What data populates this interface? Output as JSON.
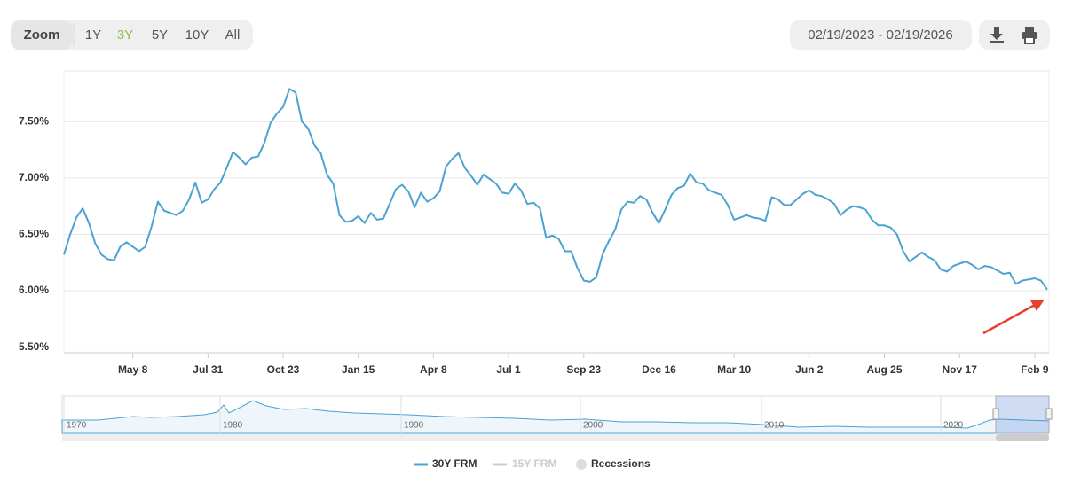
{
  "toolbar": {
    "zoom_label": "Zoom",
    "zoom_buttons": [
      "1Y",
      "3Y",
      "5Y",
      "10Y",
      "All"
    ],
    "active_zoom": 1,
    "date_range": "02/19/2023 - 02/19/2026"
  },
  "chart_data": {
    "type": "line",
    "categories": [
      null,
      null,
      null,
      null,
      null,
      null,
      null,
      null,
      null,
      null,
      null,
      "May 8",
      null,
      null,
      null,
      null,
      null,
      null,
      null,
      null,
      null,
      null,
      null,
      "Jul 31",
      null,
      null,
      null,
      null,
      null,
      null,
      null,
      null,
      null,
      null,
      null,
      "Oct 23",
      null,
      null,
      null,
      null,
      null,
      null,
      null,
      null,
      null,
      null,
      null,
      "Jan 15",
      null,
      null,
      null,
      null,
      null,
      null,
      null,
      null,
      null,
      null,
      null,
      "Apr 8",
      null,
      null,
      null,
      null,
      null,
      null,
      null,
      null,
      null,
      null,
      null,
      "Jul 1",
      null,
      null,
      null,
      null,
      null,
      null,
      null,
      null,
      null,
      null,
      null,
      "Sep 23",
      null,
      null,
      null,
      null,
      null,
      null,
      null,
      null,
      null,
      null,
      null,
      "Dec 16",
      null,
      null,
      null,
      null,
      null,
      null,
      null,
      null,
      null,
      null,
      null,
      "Mar 10",
      null,
      null,
      null,
      null,
      null,
      null,
      null,
      null,
      null,
      null,
      null,
      "Jun 2",
      null,
      null,
      null,
      null,
      null,
      null,
      null,
      null,
      null,
      null,
      null,
      "Aug 25",
      null,
      null,
      null,
      null,
      null,
      null,
      null,
      null,
      null,
      null,
      null,
      "Nov 17",
      null,
      null,
      null,
      null,
      null,
      null,
      null,
      null,
      null,
      null,
      null,
      "Feb 9",
      null,
      null
    ],
    "series": [
      {
        "name": "30Y FRM",
        "color": "#4aa3d0",
        "values": [
          6.32,
          6.5,
          6.65,
          6.73,
          6.6,
          6.42,
          6.32,
          6.28,
          6.27,
          6.39,
          6.43,
          6.39,
          6.35,
          6.39,
          6.57,
          6.79,
          6.71,
          6.69,
          6.67,
          6.71,
          6.81,
          6.96,
          6.78,
          6.81,
          6.9,
          6.96,
          7.09,
          7.23,
          7.18,
          7.12,
          7.18,
          7.19,
          7.31,
          7.49,
          7.57,
          7.63,
          7.79,
          7.76,
          7.5,
          7.44,
          7.29,
          7.22,
          7.03,
          6.95,
          6.67,
          6.61,
          6.62,
          6.66,
          6.6,
          6.69,
          6.63,
          6.64,
          6.77,
          6.9,
          6.94,
          6.88,
          6.74,
          6.87,
          6.79,
          6.82,
          6.88,
          7.1,
          7.17,
          7.22,
          7.09,
          7.02,
          6.94,
          7.03,
          6.99,
          6.95,
          6.87,
          6.86,
          6.95,
          6.89,
          6.77,
          6.78,
          6.73,
          6.47,
          6.49,
          6.46,
          6.35,
          6.35,
          6.2,
          6.09,
          6.08,
          6.12,
          6.32,
          6.44,
          6.54,
          6.72,
          6.79,
          6.78,
          6.84,
          6.81,
          6.69,
          6.6,
          6.72,
          6.85,
          6.91,
          6.93,
          7.04,
          6.96,
          6.95,
          6.89,
          6.87,
          6.85,
          6.76,
          6.63,
          6.65,
          6.67,
          6.65,
          6.64,
          6.62,
          6.83,
          6.81,
          6.76,
          6.76,
          6.81,
          6.86,
          6.89,
          6.85,
          6.84,
          6.81,
          6.77,
          6.67,
          6.72,
          6.75,
          6.74,
          6.72,
          6.63,
          6.58,
          6.58,
          6.56,
          6.5,
          6.35,
          6.26,
          6.3,
          6.34,
          6.3,
          6.27,
          6.19,
          6.17,
          6.22,
          6.24,
          6.26,
          6.23,
          6.19,
          6.22,
          6.21,
          6.18,
          6.15,
          6.16,
          6.06,
          6.09,
          6.1,
          6.11,
          6.09,
          6.01
        ]
      }
    ],
    "ylim": [
      5.45,
      7.95
    ],
    "yticks": [
      {
        "value": 5.5,
        "label": "5.50%"
      },
      {
        "value": 6,
        "label": "6.00%"
      },
      {
        "value": 6.5,
        "label": "6.50%"
      },
      {
        "value": 7,
        "label": "7.00%"
      },
      {
        "value": 7.5,
        "label": "7.50%"
      }
    ],
    "grid": true
  },
  "legend": {
    "hidden_series": "15Y FRM",
    "recessions": "Recessions"
  },
  "navigator": {
    "labels": [
      "1970",
      "1980",
      "1990",
      "2000",
      "2010",
      "2020"
    ]
  }
}
